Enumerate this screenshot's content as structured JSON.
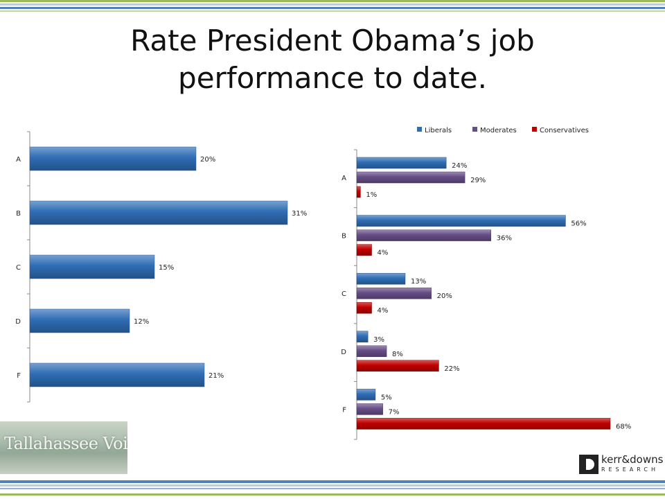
{
  "title_lines": [
    "Rate President Obama’s job",
    "performance to date."
  ],
  "logos": {
    "left_text": "Tallahassee Voices",
    "right_name": "kerr&downs",
    "right_sub": "RESEARCH"
  },
  "colors": {
    "liberals": "#2f6db5",
    "moderates": "#664d86",
    "conservatives": "#c00000",
    "overall": "#2f6db5",
    "stripe_blue": "#4f81bd",
    "stripe_green": "#9bbb59"
  },
  "chart_data": [
    {
      "type": "bar",
      "orientation": "horizontal",
      "categories": [
        "A",
        "B",
        "C",
        "D",
        "F"
      ],
      "values": [
        20,
        31,
        15,
        12,
        21
      ],
      "value_labels": [
        "20%",
        "31%",
        "15%",
        "12%",
        "21%"
      ],
      "xlim": [
        0,
        40
      ],
      "grid": false
    },
    {
      "type": "bar",
      "orientation": "horizontal",
      "categories": [
        "A",
        "B",
        "C",
        "D",
        "F"
      ],
      "legend": "top",
      "series": [
        {
          "name": "Liberals",
          "values": [
            24,
            56,
            13,
            3,
            5
          ],
          "labels": [
            "24%",
            "56%",
            "13%",
            "3%",
            "5%"
          ]
        },
        {
          "name": "Moderates",
          "values": [
            29,
            36,
            20,
            8,
            7
          ],
          "labels": [
            "29%",
            "36%",
            "20%",
            "8%",
            "7%"
          ]
        },
        {
          "name": "Conservatives",
          "values": [
            1,
            4,
            4,
            22,
            68
          ],
          "labels": [
            "1%",
            "4%",
            "4%",
            "22%",
            "68%"
          ]
        }
      ],
      "xlim": [
        0,
        80
      ],
      "grid": false
    }
  ]
}
